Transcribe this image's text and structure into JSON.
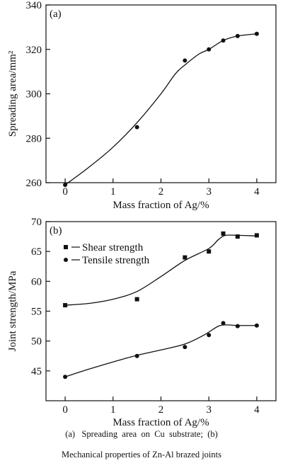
{
  "chart_data": [
    {
      "type": "line",
      "panel_label": "(a)",
      "xlabel": "Mass fraction of Ag/%",
      "ylabel": "Spreading area/mm²",
      "xlim": [
        -0.4,
        4.4
      ],
      "ylim": [
        260,
        340
      ],
      "xticks": [
        0,
        1,
        2,
        3,
        4
      ],
      "yticks": [
        260,
        280,
        300,
        320,
        340
      ],
      "series": [
        {
          "marker": "circle",
          "points": [
            [
              0,
              259
            ],
            [
              1.5,
              285
            ],
            [
              2.5,
              315
            ],
            [
              3.0,
              320
            ],
            [
              3.3,
              324
            ],
            [
              3.6,
              326
            ],
            [
              4.0,
              327
            ]
          ],
          "fit": [
            [
              0,
              259
            ],
            [
              0.5,
              267
            ],
            [
              1.0,
              276
            ],
            [
              1.5,
              287
            ],
            [
              2.0,
              300
            ],
            [
              2.3,
              309
            ],
            [
              2.5,
              313
            ],
            [
              2.8,
              318
            ],
            [
              3.0,
              320
            ],
            [
              3.3,
              324
            ],
            [
              3.6,
              326
            ],
            [
              4.0,
              327
            ]
          ]
        }
      ]
    },
    {
      "type": "line",
      "panel_label": "(b)",
      "xlabel": "Mass fraction of Ag/%",
      "ylabel": "Joint strength/MPa",
      "xlim": [
        -0.4,
        4.4
      ],
      "ylim": [
        40,
        70
      ],
      "xticks": [
        0,
        1,
        2,
        3,
        4
      ],
      "yticks": [
        45,
        50,
        55,
        60,
        65,
        70
      ],
      "legend_position": "top-left",
      "series": [
        {
          "name": "Shear strength",
          "marker": "square",
          "points": [
            [
              0,
              56
            ],
            [
              1.5,
              57
            ],
            [
              2.5,
              64
            ],
            [
              3.0,
              65
            ],
            [
              3.3,
              68
            ],
            [
              3.6,
              67.5
            ],
            [
              4.0,
              67.7
            ]
          ],
          "fit": [
            [
              0,
              56
            ],
            [
              0.5,
              56.3
            ],
            [
              1.0,
              57
            ],
            [
              1.5,
              58.3
            ],
            [
              2.0,
              60.8
            ],
            [
              2.5,
              63.5
            ],
            [
              3.0,
              65.5
            ],
            [
              3.2,
              67
            ],
            [
              3.35,
              67.7
            ],
            [
              3.6,
              67.7
            ],
            [
              4.0,
              67.6
            ]
          ]
        },
        {
          "name": "Tensile strength",
          "marker": "circle",
          "points": [
            [
              0,
              44
            ],
            [
              1.5,
              47.5
            ],
            [
              2.5,
              49
            ],
            [
              3.0,
              51
            ],
            [
              3.3,
              53
            ],
            [
              3.6,
              52.5
            ],
            [
              4.0,
              52.6
            ]
          ],
          "fit": [
            [
              0,
              44
            ],
            [
              0.5,
              45.3
            ],
            [
              1.0,
              46.5
            ],
            [
              1.5,
              47.6
            ],
            [
              2.0,
              48.5
            ],
            [
              2.5,
              49.5
            ],
            [
              2.9,
              51
            ],
            [
              3.2,
              52.5
            ],
            [
              3.4,
              52.7
            ],
            [
              3.6,
              52.6
            ],
            [
              4.0,
              52.6
            ]
          ]
        }
      ]
    }
  ],
  "caption": {
    "line1": "(a)   Spreading  area  on  Cu  substrate;  (b)",
    "line2": "Mechanical properties of Zn-Al brazed joints"
  }
}
